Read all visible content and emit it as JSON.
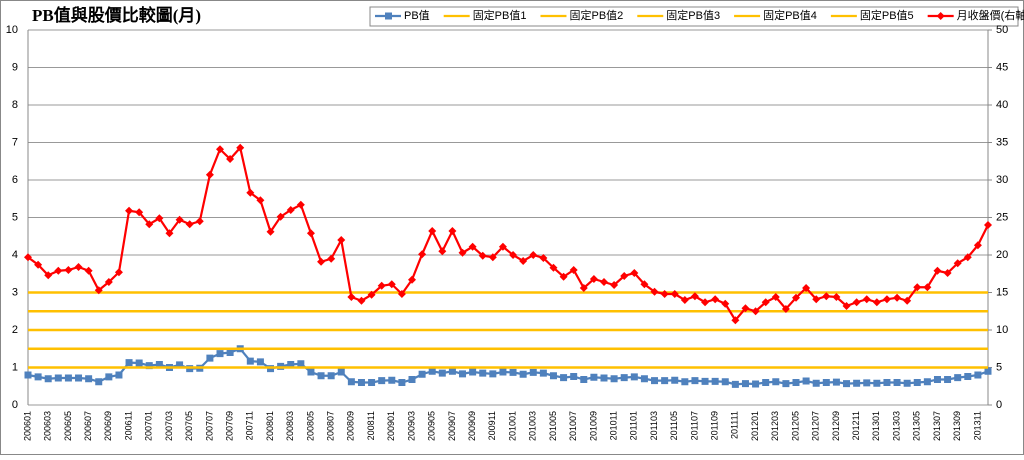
{
  "chart_data": {
    "type": "line",
    "title": "PB值與股價比較圖(月)",
    "categories": [
      "200601",
      null,
      "200603",
      null,
      "200605",
      null,
      "200607",
      null,
      "200609",
      null,
      "200611",
      null,
      "200701",
      null,
      "200703",
      null,
      "200705",
      null,
      "200707",
      null,
      "200709",
      null,
      "200711",
      null,
      "200801",
      null,
      "200803",
      null,
      "200805",
      null,
      "200807",
      null,
      "200809",
      null,
      "200811",
      null,
      "200901",
      null,
      "200903",
      null,
      "200905",
      null,
      "200907",
      null,
      "200909",
      null,
      "200911",
      null,
      "201001",
      null,
      "201003",
      null,
      "201005",
      null,
      "201007",
      null,
      "201009",
      null,
      "201011",
      null,
      "201101",
      null,
      "201103",
      null,
      "201105",
      null,
      "201107",
      null,
      "201109",
      null,
      "201111",
      null,
      "201201",
      null,
      "201203",
      null,
      "201205",
      null,
      "201207",
      null,
      "201209",
      null,
      "201211",
      null,
      "201301",
      null,
      "201303",
      null,
      "201305",
      null,
      "201307",
      null,
      "201309",
      null,
      "201311",
      null
    ],
    "series": [
      {
        "name": "PB值",
        "color": "#4f81bd",
        "marker": "square",
        "values": [
          0.8,
          0.75,
          0.7,
          0.72,
          0.72,
          0.72,
          0.7,
          0.62,
          0.75,
          0.8,
          1.13,
          1.12,
          1.05,
          1.08,
          1.0,
          1.07,
          0.97,
          0.98,
          1.25,
          1.37,
          1.4,
          1.5,
          1.17,
          1.15,
          0.97,
          1.03,
          1.08,
          1.1,
          0.88,
          0.78,
          0.78,
          0.88,
          0.62,
          0.6,
          0.6,
          0.65,
          0.66,
          0.6,
          0.68,
          0.82,
          0.9,
          0.85,
          0.9,
          0.83,
          0.88,
          0.85,
          0.83,
          0.88,
          0.87,
          0.82,
          0.87,
          0.85,
          0.78,
          0.73,
          0.76,
          0.68,
          0.74,
          0.72,
          0.7,
          0.73,
          0.75,
          0.7,
          0.65,
          0.65,
          0.66,
          0.62,
          0.65,
          0.63,
          0.63,
          0.62,
          0.55,
          0.57,
          0.56,
          0.6,
          0.62,
          0.57,
          0.6,
          0.64,
          0.58,
          0.6,
          0.61,
          0.57,
          0.58,
          0.59,
          0.58,
          0.6,
          0.6,
          0.58,
          0.6,
          0.62,
          0.68,
          0.68,
          0.73,
          0.76,
          0.8,
          0.9
        ]
      },
      {
        "name": "固定PB值1",
        "color": "#ffc000",
        "value": 1
      },
      {
        "name": "固定PB值2",
        "color": "#ffc000",
        "value": 1.5
      },
      {
        "name": "固定PB值3",
        "color": "#ffc000",
        "value": 2
      },
      {
        "name": "固定PB值4",
        "color": "#ffc000",
        "value": 2.5
      },
      {
        "name": "固定PB值5",
        "color": "#ffc000",
        "value": 3
      },
      {
        "name": "月收盤價(右軸)",
        "color": "#ff0000",
        "marker": "diamond",
        "axis": "y2",
        "values": [
          19.7,
          18.7,
          17.3,
          17.9,
          18.0,
          18.4,
          17.9,
          15.3,
          16.4,
          17.7,
          25.9,
          25.7,
          24.1,
          24.9,
          22.9,
          24.7,
          24.1,
          24.5,
          30.7,
          34.1,
          32.8,
          34.3,
          28.3,
          27.3,
          23.1,
          25.1,
          26.0,
          26.7,
          22.9,
          19.1,
          19.5,
          22.0,
          14.4,
          13.9,
          14.7,
          15.9,
          16.1,
          14.8,
          16.7,
          20.1,
          23.2,
          20.5,
          23.2,
          20.3,
          21.1,
          19.9,
          19.7,
          21.1,
          20.0,
          19.2,
          20.0,
          19.6,
          18.3,
          17.1,
          18.0,
          15.6,
          16.8,
          16.4,
          16.0,
          17.2,
          17.6,
          16.1,
          15.1,
          14.8,
          14.8,
          14.0,
          14.5,
          13.7,
          14.1,
          13.5,
          11.3,
          12.9,
          12.5,
          13.7,
          14.4,
          12.8,
          14.3,
          15.6,
          14.1,
          14.5,
          14.4,
          13.2,
          13.7,
          14.1,
          13.7,
          14.1,
          14.3,
          13.9,
          15.7,
          15.7,
          17.9,
          17.6,
          18.9,
          19.7,
          21.3,
          24.0
        ]
      }
    ],
    "ylim": [
      0,
      10
    ],
    "yticks": [
      0,
      1,
      2,
      3,
      4,
      5,
      6,
      7,
      8,
      9,
      10
    ],
    "y2lim": [
      0,
      50
    ],
    "y2ticks": [
      0,
      5,
      10,
      15,
      20,
      25,
      30,
      35,
      40,
      45,
      50
    ],
    "grid": true,
    "legend": "top-right"
  }
}
